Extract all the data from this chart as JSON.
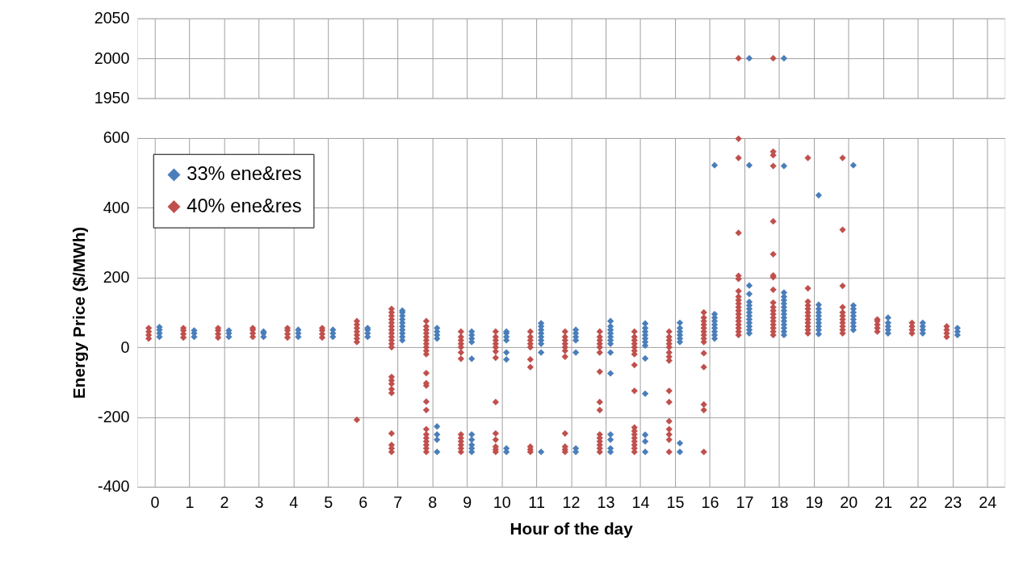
{
  "chart_data": [
    {
      "type": "scatter",
      "xlim": [
        -0.5,
        24.5
      ],
      "xticks": [
        0,
        1,
        2,
        3,
        4,
        5,
        6,
        7,
        8,
        9,
        10,
        11,
        12,
        13,
        14,
        15,
        16,
        17,
        18,
        19,
        20,
        21,
        22,
        23,
        24
      ],
      "ylim": [
        1950,
        2050
      ],
      "yticks": [
        1950,
        2000,
        2050
      ],
      "grid": true,
      "tick_labels": "y",
      "marker": "diamond",
      "legend": false,
      "series": [
        {
          "color": "#4a7ebb",
          "x": [
            17.14,
            18.14
          ],
          "values": [
            2000,
            2000
          ]
        },
        {
          "color": "#c0504d",
          "x": [
            16.83,
            17.83
          ],
          "values": [
            2000,
            2000
          ]
        }
      ]
    },
    {
      "type": "scatter",
      "xlabel": "Hour of the day",
      "ylabel": "Energy Price ($/MWh)",
      "xlim": [
        -0.5,
        24.5
      ],
      "xticks": [
        0,
        1,
        2,
        3,
        4,
        5,
        6,
        7,
        8,
        9,
        10,
        11,
        12,
        13,
        14,
        15,
        16,
        17,
        18,
        19,
        20,
        21,
        22,
        23,
        24
      ],
      "ylim": [
        -400,
        600
      ],
      "yticks": [
        -400,
        -200,
        0,
        200,
        400,
        600
      ],
      "grid": true,
      "marker": "diamond",
      "legend": "top left",
      "series": [
        {
          "name": "33% ene&res",
          "color": "#4a7ebb",
          "x": [
            0.14,
            0.14,
            0.14,
            0.14,
            1.14,
            1.14,
            1.14,
            2.14,
            2.14,
            2.14,
            3.14,
            3.14,
            3.14,
            4.14,
            4.14,
            4.14,
            5.14,
            5.14,
            5.14,
            6.14,
            6.14,
            6.14,
            6.14,
            7.14,
            7.14,
            7.14,
            7.14,
            7.14,
            7.14,
            7.14,
            7.14,
            7.14,
            7.14,
            8.14,
            8.14,
            8.14,
            8.14,
            8.14,
            8.14,
            8.14,
            8.14,
            9.14,
            9.14,
            9.14,
            9.14,
            9.14,
            9.14,
            9.14,
            9.14,
            9.14,
            9.14,
            10.14,
            10.14,
            10.14,
            10.14,
            10.14,
            10.14,
            10.14,
            10.14,
            11.14,
            11.14,
            11.14,
            11.14,
            11.14,
            11.14,
            11.14,
            11.14,
            11.14,
            12.14,
            12.14,
            12.14,
            12.14,
            12.14,
            12.14,
            12.14,
            13.14,
            13.14,
            13.14,
            13.14,
            13.14,
            13.14,
            13.14,
            13.14,
            13.14,
            13.14,
            13.14,
            13.14,
            13.14,
            14.14,
            14.14,
            14.14,
            14.14,
            14.14,
            14.14,
            14.14,
            14.14,
            14.14,
            14.14,
            14.14,
            14.14,
            15.14,
            15.14,
            15.14,
            15.14,
            15.14,
            15.14,
            15.14,
            15.14,
            16.14,
            16.14,
            16.14,
            16.14,
            16.14,
            16.14,
            16.14,
            16.14,
            16.14,
            17.14,
            17.14,
            17.14,
            17.14,
            17.14,
            17.14,
            17.14,
            17.14,
            17.14,
            17.14,
            17.14,
            17.14,
            17.14,
            18.14,
            18.14,
            18.14,
            18.14,
            18.14,
            18.14,
            18.14,
            18.14,
            18.14,
            18.14,
            18.14,
            18.14,
            18.14,
            18.14,
            19.14,
            19.14,
            19.14,
            19.14,
            19.14,
            19.14,
            19.14,
            19.14,
            19.14,
            19.14,
            20.14,
            20.14,
            20.14,
            20.14,
            20.14,
            20.14,
            20.14,
            20.14,
            20.14,
            21.14,
            21.14,
            21.14,
            21.14,
            21.14,
            22.14,
            22.14,
            22.14,
            22.14,
            23.14,
            23.14,
            23.14
          ],
          "values": [
            30,
            40,
            50,
            58,
            30,
            40,
            48,
            30,
            40,
            48,
            30,
            40,
            45,
            30,
            40,
            50,
            30,
            40,
            50,
            30,
            40,
            50,
            55,
            20,
            30,
            40,
            50,
            60,
            70,
            80,
            90,
            100,
            105,
            25,
            35,
            45,
            55,
            -227,
            -250,
            -265,
            -300,
            15,
            25,
            35,
            45,
            -33,
            -250,
            -265,
            -280,
            -290,
            -300,
            20,
            30,
            40,
            45,
            -15,
            -35,
            -290,
            -300,
            10,
            20,
            30,
            40,
            50,
            60,
            69,
            -15,
            -300,
            20,
            30,
            40,
            50,
            -15,
            -290,
            -300,
            10,
            20,
            30,
            40,
            50,
            60,
            75,
            -15,
            -75,
            -250,
            -265,
            -290,
            -300,
            5,
            15,
            25,
            35,
            45,
            55,
            68,
            -32,
            -133,
            -251,
            -270,
            -300,
            15,
            25,
            35,
            45,
            55,
            70,
            -275,
            -300,
            25,
            35,
            45,
            55,
            65,
            75,
            85,
            95,
            522,
            40,
            50,
            60,
            70,
            80,
            90,
            100,
            110,
            120,
            130,
            153,
            177,
            522,
            35,
            45,
            55,
            65,
            75,
            85,
            95,
            105,
            115,
            125,
            135,
            145,
            157,
            520,
            38,
            50,
            60,
            70,
            80,
            90,
            100,
            110,
            122,
            436,
            50,
            60,
            70,
            80,
            90,
            100,
            110,
            120,
            522,
            40,
            50,
            60,
            70,
            85,
            40,
            50,
            60,
            70,
            35,
            45,
            55
          ]
        },
        {
          "name": "40% ene&res",
          "color": "#c0504d",
          "x": [
            -0.17,
            -0.17,
            -0.17,
            -0.17,
            0.83,
            0.83,
            0.83,
            0.83,
            1.83,
            1.83,
            1.83,
            1.83,
            2.83,
            2.83,
            2.83,
            2.83,
            3.83,
            3.83,
            3.83,
            3.83,
            4.83,
            4.83,
            4.83,
            4.83,
            5.83,
            5.83,
            5.83,
            5.83,
            5.83,
            5.83,
            5.83,
            5.83,
            6.83,
            6.83,
            6.83,
            6.83,
            6.83,
            6.83,
            6.83,
            6.83,
            6.83,
            6.83,
            6.83,
            6.83,
            6.83,
            6.83,
            6.83,
            6.83,
            6.83,
            6.83,
            6.83,
            6.83,
            6.83,
            7.83,
            7.83,
            7.83,
            7.83,
            7.83,
            7.83,
            7.83,
            7.83,
            7.83,
            7.83,
            7.83,
            7.83,
            7.83,
            7.83,
            7.83,
            7.83,
            7.83,
            7.83,
            7.83,
            7.83,
            7.83,
            7.83,
            8.83,
            8.83,
            8.83,
            8.83,
            8.83,
            8.83,
            8.83,
            8.83,
            8.83,
            8.83,
            8.83,
            8.83,
            8.83,
            9.83,
            9.83,
            9.83,
            9.83,
            9.83,
            9.83,
            9.83,
            9.83,
            9.83,
            9.83,
            9.83,
            9.83,
            9.83,
            10.83,
            10.83,
            10.83,
            10.83,
            10.83,
            10.83,
            10.83,
            10.83,
            10.83,
            10.83,
            11.83,
            11.83,
            11.83,
            11.83,
            11.83,
            11.83,
            11.83,
            11.83,
            11.83,
            11.83,
            11.83,
            12.83,
            12.83,
            12.83,
            12.83,
            12.83,
            12.83,
            12.83,
            12.83,
            12.83,
            12.83,
            12.83,
            12.83,
            12.83,
            12.83,
            12.83,
            13.83,
            13.83,
            13.83,
            13.83,
            13.83,
            13.83,
            13.83,
            13.83,
            13.83,
            13.83,
            13.83,
            13.83,
            13.83,
            13.83,
            13.83,
            13.83,
            13.83,
            14.83,
            14.83,
            14.83,
            14.83,
            14.83,
            14.83,
            14.83,
            14.83,
            14.83,
            14.83,
            14.83,
            14.83,
            14.83,
            14.83,
            14.83,
            15.83,
            15.83,
            15.83,
            15.83,
            15.83,
            15.83,
            15.83,
            15.83,
            15.83,
            15.83,
            15.83,
            15.83,
            15.83,
            15.83,
            16.83,
            16.83,
            16.83,
            16.83,
            16.83,
            16.83,
            16.83,
            16.83,
            16.83,
            16.83,
            16.83,
            16.83,
            16.83,
            16.83,
            16.83,
            16.83,
            16.83,
            16.83,
            17.83,
            17.83,
            17.83,
            17.83,
            17.83,
            17.83,
            17.83,
            17.83,
            17.83,
            17.83,
            17.83,
            17.83,
            17.83,
            17.83,
            17.83,
            17.83,
            17.83,
            17.83,
            18.83,
            18.83,
            18.83,
            18.83,
            18.83,
            18.83,
            18.83,
            18.83,
            18.83,
            18.83,
            18.83,
            18.83,
            19.83,
            19.83,
            19.83,
            19.83,
            19.83,
            19.83,
            19.83,
            19.83,
            19.83,
            19.83,
            19.83,
            20.83,
            20.83,
            20.83,
            20.83,
            20.83,
            21.83,
            21.83,
            21.83,
            21.83,
            22.83,
            22.83,
            22.83,
            22.83
          ],
          "values": [
            25,
            35,
            45,
            55,
            28,
            38,
            48,
            55,
            28,
            38,
            48,
            55,
            30,
            40,
            50,
            55,
            28,
            38,
            48,
            55,
            28,
            38,
            48,
            55,
            15,
            25,
            35,
            45,
            55,
            65,
            75,
            -208,
            0,
            10,
            20,
            30,
            40,
            50,
            60,
            70,
            80,
            90,
            100,
            110,
            -85,
            -95,
            -105,
            -120,
            -131,
            -247,
            -280,
            -290,
            -300,
            -20,
            -10,
            0,
            10,
            20,
            30,
            40,
            50,
            60,
            75,
            -74,
            -103,
            -110,
            -156,
            -180,
            -235,
            -250,
            -260,
            -270,
            -280,
            -290,
            -300,
            -33,
            -15,
            0,
            10,
            20,
            30,
            45,
            -250,
            -260,
            -270,
            -280,
            -290,
            -300,
            -30,
            -12,
            0,
            10,
            20,
            30,
            45,
            -157,
            -247,
            -265,
            -285,
            -293,
            -300,
            -57,
            -35,
            0,
            10,
            20,
            30,
            45,
            -285,
            -293,
            -300,
            -27,
            -10,
            0,
            10,
            20,
            30,
            45,
            -247,
            -285,
            -293,
            -300,
            -15,
            0,
            10,
            20,
            30,
            45,
            -70,
            -157,
            -180,
            -250,
            -260,
            -270,
            -280,
            -290,
            -300,
            -51,
            -20,
            -10,
            0,
            10,
            20,
            30,
            45,
            -125,
            -230,
            -240,
            -250,
            -260,
            -270,
            -280,
            -290,
            -300,
            -38,
            -27,
            -15,
            0,
            10,
            20,
            30,
            45,
            -125,
            -157,
            -212,
            -235,
            -250,
            -265,
            -300,
            -57,
            -17,
            15,
            25,
            35,
            45,
            55,
            65,
            75,
            85,
            100,
            -164,
            -180,
            -300,
            35,
            45,
            55,
            65,
            75,
            85,
            95,
            105,
            115,
            125,
            135,
            145,
            161,
            196,
            205,
            328,
            543,
            598,
            35,
            45,
            55,
            65,
            75,
            85,
            95,
            105,
            115,
            128,
            165,
            201,
            206,
            267,
            361,
            520,
            551,
            561,
            40,
            50,
            60,
            70,
            80,
            90,
            100,
            110,
            120,
            131,
            169,
            543,
            40,
            50,
            60,
            70,
            80,
            90,
            100,
            115,
            176,
            337,
            543,
            45,
            55,
            65,
            75,
            80,
            40,
            50,
            60,
            70,
            30,
            40,
            50,
            60
          ]
        }
      ]
    }
  ]
}
